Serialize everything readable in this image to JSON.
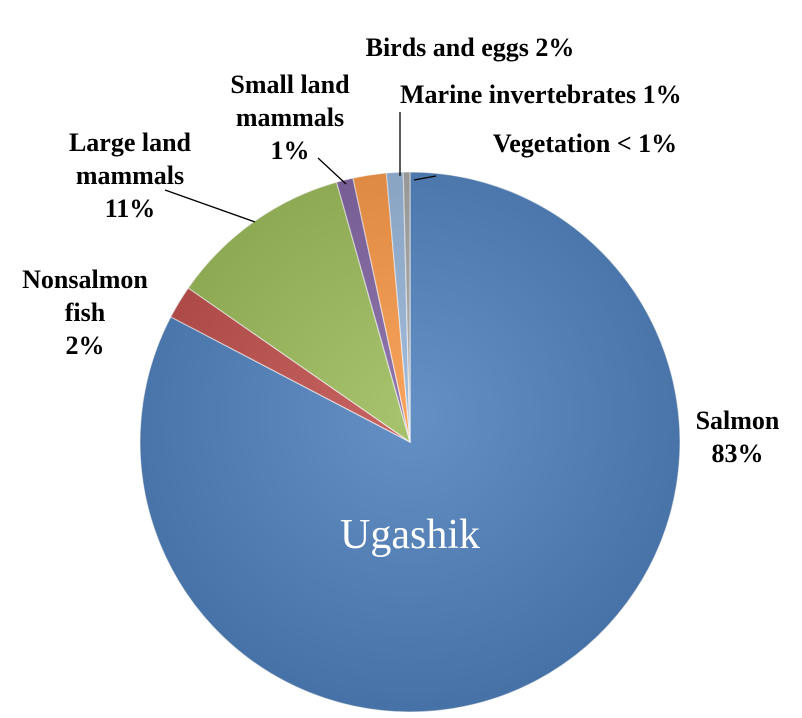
{
  "chart_data": {
    "type": "pie",
    "title": "Ugashik",
    "categories": [
      "Salmon",
      "Nonsalmon fish",
      "Large land mammals",
      "Small land mammals",
      "Birds and eggs",
      "Marine invertebrates",
      "Vegetation"
    ],
    "values": [
      83,
      2,
      11,
      1,
      2,
      1,
      0.4
    ],
    "value_labels": [
      "83%",
      "2%",
      "11%",
      "1%",
      "2%",
      "1%",
      "< 1%"
    ],
    "colors": [
      "#4f81bd",
      "#c0504d",
      "#9bbb59",
      "#8064a2",
      "#f79646",
      "#95b3d7",
      "#a5a5a5"
    ]
  }
}
